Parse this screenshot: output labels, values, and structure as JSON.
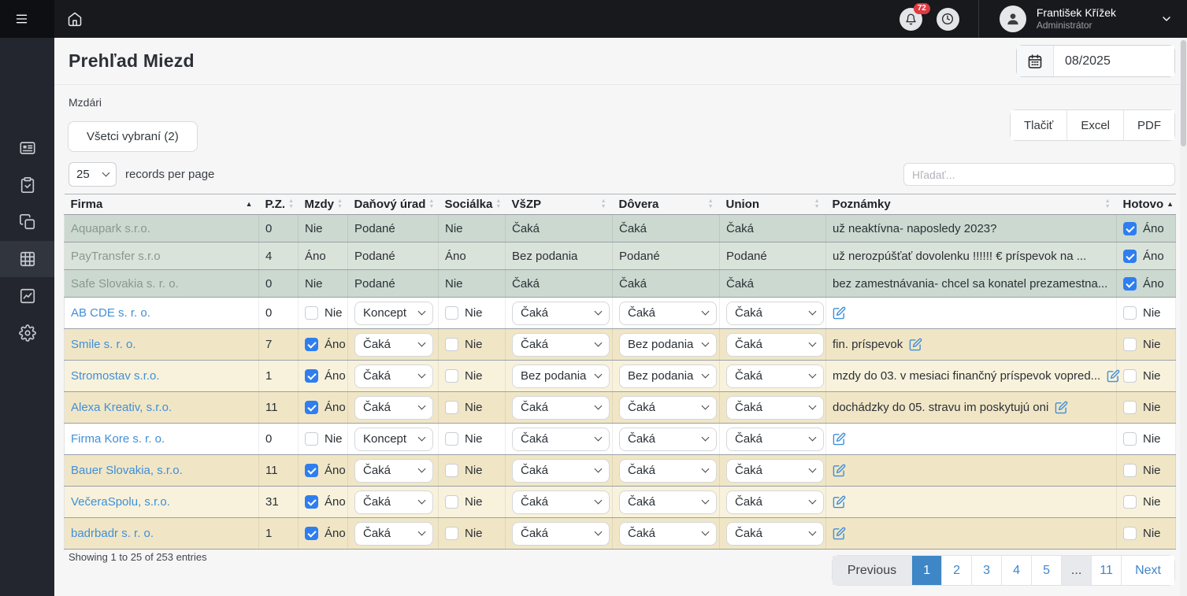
{
  "topbar": {
    "notification_count": "72",
    "user_name": "František Křížek",
    "user_role": "Administrátor"
  },
  "sidebar": {
    "items": [
      {
        "name": "card-icon",
        "active": false
      },
      {
        "name": "clipboard-check-icon",
        "active": false
      },
      {
        "name": "copy-icon",
        "active": false
      },
      {
        "name": "grid-icon",
        "active": true
      },
      {
        "name": "chart-line-icon",
        "active": false
      },
      {
        "name": "gear-icon",
        "active": false
      }
    ]
  },
  "header": {
    "title": "Prehľad Miezd",
    "period_value": "08/2025"
  },
  "toolbar": {
    "mzdari_label": "Mzdári",
    "filter_button": "Všetci vybraní (2)",
    "export_buttons": [
      "Tlačiť",
      "Excel",
      "PDF"
    ]
  },
  "table_controls": {
    "page_size": "25",
    "records_label": "records per page",
    "search_placeholder": "Hľadať..."
  },
  "table": {
    "columns": [
      {
        "key": "firma",
        "label": "Firma",
        "sort": "asc"
      },
      {
        "key": "pz",
        "label": "P.Z.",
        "sort": "both"
      },
      {
        "key": "mzdy",
        "label": "Mzdy",
        "sort": "both"
      },
      {
        "key": "danovy",
        "label": "Daňový úrad",
        "sort": "both"
      },
      {
        "key": "socialka",
        "label": "Sociálka",
        "sort": "both"
      },
      {
        "key": "vszp",
        "label": "VšZP",
        "sort": "both"
      },
      {
        "key": "dovera",
        "label": "Dôvera",
        "sort": "both"
      },
      {
        "key": "union",
        "label": "Union",
        "sort": "both"
      },
      {
        "key": "poznamky",
        "label": "Poznámky",
        "sort": "both"
      },
      {
        "key": "hotovo",
        "label": "Hotovo",
        "sort": "asc"
      }
    ],
    "rows": [
      {
        "type": "readonly",
        "shade": "green-dark",
        "firma": "Aquapark s.r.o.",
        "pz": "0",
        "mzdy": "Nie",
        "danovy": "Podané",
        "socialka": "Nie",
        "vszp": "Čaká",
        "dovera": "Čaká",
        "union": "Čaká",
        "poznamky": "už neaktívna- naposledy 2023?",
        "hotovo": "Áno",
        "hotovo_checked": true
      },
      {
        "type": "readonly",
        "shade": "green-light",
        "firma": "PayTransfer s.r.o",
        "pz": "4",
        "mzdy": "Áno",
        "danovy": "Podané",
        "socialka": "Áno",
        "vszp": "Bez podania",
        "dovera": "Podané",
        "union": "Podané",
        "poznamky": "už nerozpúšťať dovolenku !!!!!! € príspevok na ...",
        "hotovo": "Áno",
        "hotovo_checked": true
      },
      {
        "type": "readonly",
        "shade": "green-dark",
        "firma": "Safe Slovakia s. r. o.",
        "pz": "0",
        "mzdy": "Nie",
        "danovy": "Podané",
        "socialka": "Nie",
        "vszp": "Čaká",
        "dovera": "Čaká",
        "union": "Čaká",
        "poznamky": "bez zamestnávania- chcel sa konatel prezamestna...",
        "hotovo": "Áno",
        "hotovo_checked": true
      },
      {
        "type": "editable",
        "shade": "white",
        "firma": "AB CDE s. r. o.",
        "pz": "0",
        "mzdy": "Nie",
        "mzdy_checked": false,
        "danovy": "Koncept",
        "socialka": "Nie",
        "socialka_checked": false,
        "vszp": "Čaká",
        "dovera": "Čaká",
        "union": "Čaká",
        "poznamky": "",
        "hotovo": "Nie",
        "hotovo_checked": false
      },
      {
        "type": "editable",
        "shade": "beige-dark",
        "firma": "Smile s. r. o.",
        "pz": "7",
        "mzdy": "Áno",
        "mzdy_checked": true,
        "danovy": "Čaká",
        "socialka": "Nie",
        "socialka_checked": false,
        "vszp": "Čaká",
        "dovera": "Bez podania",
        "union": "Čaká",
        "poznamky": "fin. príspevok",
        "hotovo": "Nie",
        "hotovo_checked": false
      },
      {
        "type": "editable",
        "shade": "beige-light",
        "firma": "Stromostav s.r.o.",
        "pz": "1",
        "mzdy": "Áno",
        "mzdy_checked": true,
        "danovy": "Čaká",
        "socialka": "Nie",
        "socialka_checked": false,
        "vszp": "Bez podania",
        "dovera": "Bez podania",
        "union": "Čaká",
        "poznamky": "mzdy do 03. v mesiaci finančný príspevok vopred...",
        "hotovo": "Nie",
        "hotovo_checked": false
      },
      {
        "type": "editable",
        "shade": "beige-dark",
        "firma": "Alexa Kreativ, s.r.o.",
        "pz": "11",
        "mzdy": "Áno",
        "mzdy_checked": true,
        "danovy": "Čaká",
        "socialka": "Nie",
        "socialka_checked": false,
        "vszp": "Čaká",
        "dovera": "Čaká",
        "union": "Čaká",
        "poznamky": "dochádzky do 05. stravu im poskytujú oni",
        "hotovo": "Nie",
        "hotovo_checked": false
      },
      {
        "type": "editable",
        "shade": "white",
        "firma": "Firma Kore s. r. o.",
        "pz": "0",
        "mzdy": "Nie",
        "mzdy_checked": false,
        "danovy": "Koncept",
        "socialka": "Nie",
        "socialka_checked": false,
        "vszp": "Čaká",
        "dovera": "Čaká",
        "union": "Čaká",
        "poznamky": "",
        "hotovo": "Nie",
        "hotovo_checked": false
      },
      {
        "type": "editable",
        "shade": "beige-dark",
        "firma": "Bauer Slovakia, s.r.o.",
        "pz": "11",
        "mzdy": "Áno",
        "mzdy_checked": true,
        "danovy": "Čaká",
        "socialka": "Nie",
        "socialka_checked": false,
        "vszp": "Čaká",
        "dovera": "Čaká",
        "union": "Čaká",
        "poznamky": "",
        "hotovo": "Nie",
        "hotovo_checked": false
      },
      {
        "type": "editable",
        "shade": "beige-light",
        "firma": "VečeraSpolu, s.r.o.",
        "pz": "31",
        "mzdy": "Áno",
        "mzdy_checked": true,
        "danovy": "Čaká",
        "socialka": "Nie",
        "socialka_checked": false,
        "vszp": "Čaká",
        "dovera": "Čaká",
        "union": "Čaká",
        "poznamky": "",
        "hotovo": "Nie",
        "hotovo_checked": false
      },
      {
        "type": "editable",
        "shade": "beige-dark",
        "firma": "badrbadr s. r. o.",
        "pz": "1",
        "mzdy": "Áno",
        "mzdy_checked": true,
        "danovy": "Čaká",
        "socialka": "Nie",
        "socialka_checked": false,
        "vszp": "Čaká",
        "dovera": "Čaká",
        "union": "Čaká",
        "poznamky": "",
        "hotovo": "Nie",
        "hotovo_checked": false
      }
    ]
  },
  "footer": {
    "showing_text": "Showing 1 to 25 of 253 entries",
    "pagination": [
      {
        "label": "Previous",
        "kind": "prev",
        "active": false
      },
      {
        "label": "1",
        "kind": "page",
        "active": true
      },
      {
        "label": "2",
        "kind": "page",
        "active": false
      },
      {
        "label": "3",
        "kind": "page",
        "active": false
      },
      {
        "label": "4",
        "kind": "page",
        "active": false
      },
      {
        "label": "5",
        "kind": "page",
        "active": false
      },
      {
        "label": "...",
        "kind": "ellipsis",
        "active": false
      },
      {
        "label": "11",
        "kind": "page",
        "active": false
      },
      {
        "label": "Next",
        "kind": "next",
        "active": false
      }
    ]
  },
  "colors": {
    "checkbox_checked": "#2e7ef0",
    "link_blue": "#3f8fd9",
    "pagination_active": "#3e86c5",
    "badge_red": "#dd3a41",
    "row_green": "#cbd9d0",
    "row_beige": "#f0e6c6"
  }
}
